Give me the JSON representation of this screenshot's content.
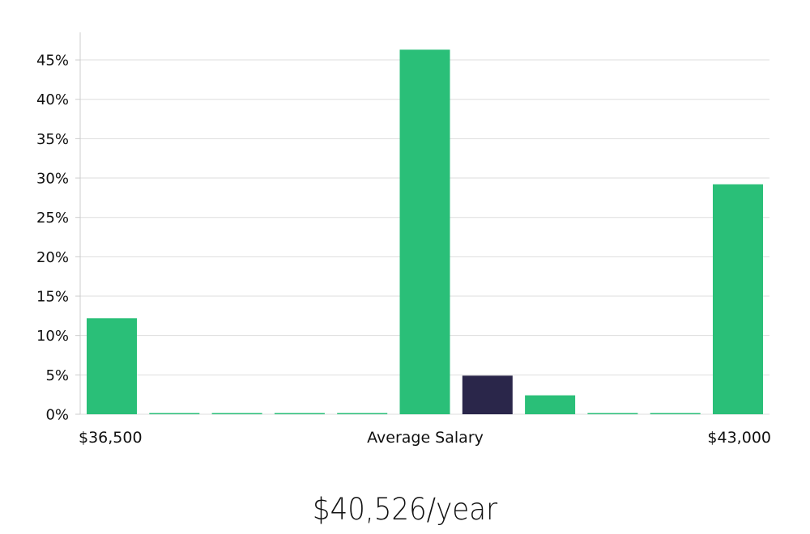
{
  "chart_data": {
    "type": "bar",
    "title": "",
    "ylabel": "",
    "xlabel": "",
    "x_axis_labels": {
      "left": "$36,500",
      "center": "Average Salary",
      "right": "$43,000"
    },
    "y_ticks": [
      "0%",
      "5%",
      "10%",
      "15%",
      "20%",
      "25%",
      "30%",
      "35%",
      "40%",
      "45%"
    ],
    "ylim": [
      0,
      48.5
    ],
    "grid": true,
    "values": [
      12.2,
      0,
      0,
      0,
      0,
      46.3,
      4.9,
      2.4,
      0,
      0,
      29.2
    ],
    "highlight_index": 6,
    "colors": {
      "bar": "#2abf78",
      "highlight": "#2a264a",
      "grid": "#dddddd",
      "axis": "#cccccc"
    }
  },
  "summary": {
    "salary_text": "$40,526/year"
  }
}
